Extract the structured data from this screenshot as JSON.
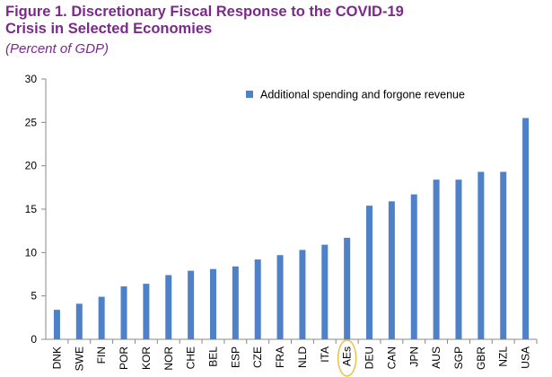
{
  "figure": {
    "title_line1": "Figure 1. Discretionary Fiscal Response to the COVID-19",
    "title_line2": "Crisis in Selected Economies",
    "subtitle": "(Percent of GDP)"
  },
  "colors": {
    "bar": "#4f81c8",
    "title": "#7b2a8b",
    "highlight_circle": "#e8c24a"
  },
  "chart_data": {
    "type": "bar",
    "title": "Figure 1. Discretionary Fiscal Response to the COVID-19 Crisis in Selected Economies",
    "subtitle": "(Percent of GDP)",
    "categories": [
      "DNK",
      "SWE",
      "FIN",
      "POR",
      "KOR",
      "NOR",
      "CHE",
      "BEL",
      "ESP",
      "CZE",
      "FRA",
      "NLD",
      "ITA",
      "AEs",
      "DEU",
      "CAN",
      "JPN",
      "AUS",
      "SGP",
      "GBR",
      "NZL",
      "USA"
    ],
    "series": [
      {
        "name": "Additional spending and forgone revenue",
        "values": [
          3.4,
          4.1,
          4.9,
          6.1,
          6.4,
          7.4,
          7.9,
          8.1,
          8.4,
          9.2,
          9.7,
          10.3,
          10.9,
          11.7,
          15.4,
          15.9,
          16.7,
          18.4,
          18.4,
          19.3,
          19.3,
          25.5
        ]
      }
    ],
    "highlighted_category": "AEs",
    "yticks": [
      0,
      5,
      10,
      15,
      20,
      25,
      30
    ],
    "ylim": [
      0,
      30
    ],
    "xlabel": "",
    "ylabel": "",
    "grid": false,
    "legend_position": "top-right"
  }
}
